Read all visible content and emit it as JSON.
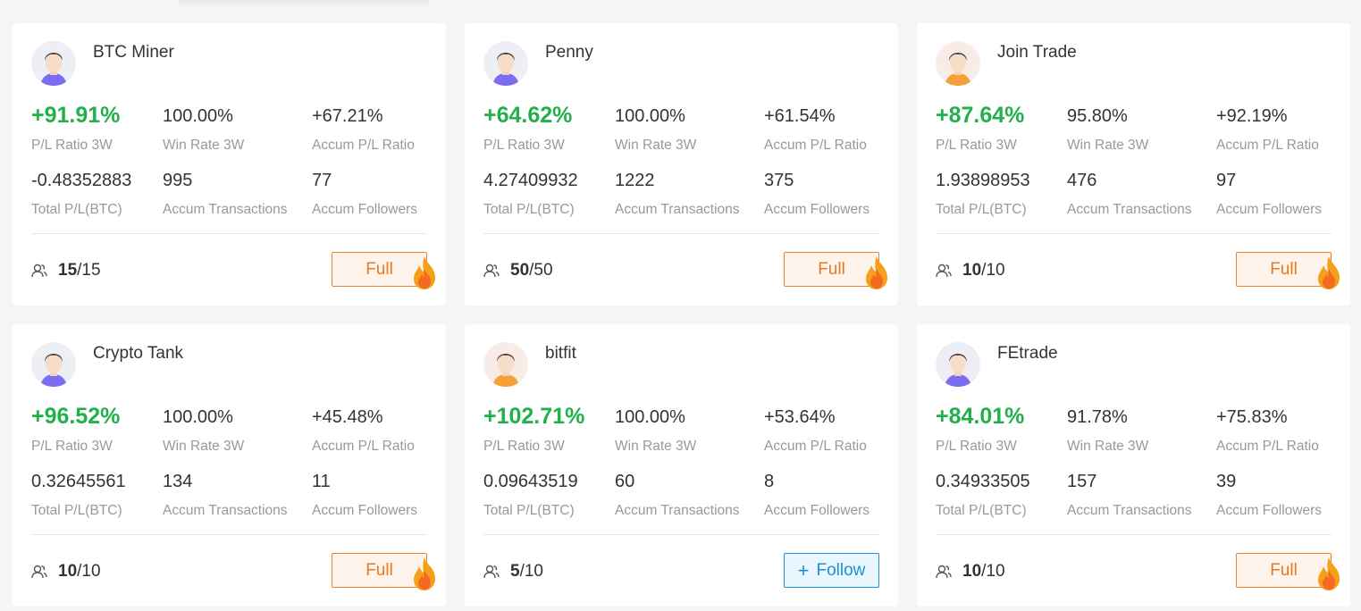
{
  "labels": {
    "pl_ratio_3w": "P/L Ratio 3W",
    "win_rate_3w": "Win Rate 3W",
    "accum_pl_ratio": "Accum P/L Ratio",
    "total_pl_btc": "Total P/L(BTC)",
    "accum_transactions": "Accum Transactions",
    "accum_followers": "Accum Followers"
  },
  "colors": {
    "positive": "#22b04a",
    "full_accent": "#e8781f",
    "follow_accent": "#1f8fd6"
  },
  "traders": [
    {
      "name": "BTC Miner",
      "avatar": "male-avatar-purple",
      "pl_ratio": "+91.91%",
      "win_rate": "100.00%",
      "accum_pl": "+67.21%",
      "total_pl": "-0.48352883",
      "transactions": "995",
      "followers": "77",
      "seats_used": "15",
      "seats_total": "/15",
      "button": "Full",
      "button_type": "full"
    },
    {
      "name": "Penny",
      "avatar": "male-avatar-purple",
      "pl_ratio": "+64.62%",
      "win_rate": "100.00%",
      "accum_pl": "+61.54%",
      "total_pl": "4.27409932",
      "transactions": "1222",
      "followers": "375",
      "seats_used": "50",
      "seats_total": "/50",
      "button": "Full",
      "button_type": "full"
    },
    {
      "name": "Join Trade",
      "avatar": "male-avatar-orange",
      "pl_ratio": "+87.64%",
      "win_rate": "95.80%",
      "accum_pl": "+92.19%",
      "total_pl": "1.93898953",
      "transactions": "476",
      "followers": "97",
      "seats_used": "10",
      "seats_total": "/10",
      "button": "Full",
      "button_type": "full"
    },
    {
      "name": "Crypto Tank",
      "avatar": "male-avatar-purple",
      "pl_ratio": "+96.52%",
      "win_rate": "100.00%",
      "accum_pl": "+45.48%",
      "total_pl": "0.32645561",
      "transactions": "134",
      "followers": "11",
      "seats_used": "10",
      "seats_total": "/10",
      "button": "Full",
      "button_type": "full"
    },
    {
      "name": "bitfit",
      "avatar": "male-avatar-orange",
      "pl_ratio": "+102.71%",
      "win_rate": "100.00%",
      "accum_pl": "+53.64%",
      "total_pl": "0.09643519",
      "transactions": "60",
      "followers": "8",
      "seats_used": "5",
      "seats_total": "/10",
      "button": "Follow",
      "button_type": "follow"
    },
    {
      "name": "FEtrade",
      "avatar": "male-avatar-purple",
      "pl_ratio": "+84.01%",
      "win_rate": "91.78%",
      "accum_pl": "+75.83%",
      "total_pl": "0.34933505",
      "transactions": "157",
      "followers": "39",
      "seats_used": "10",
      "seats_total": "/10",
      "button": "Full",
      "button_type": "full"
    }
  ]
}
